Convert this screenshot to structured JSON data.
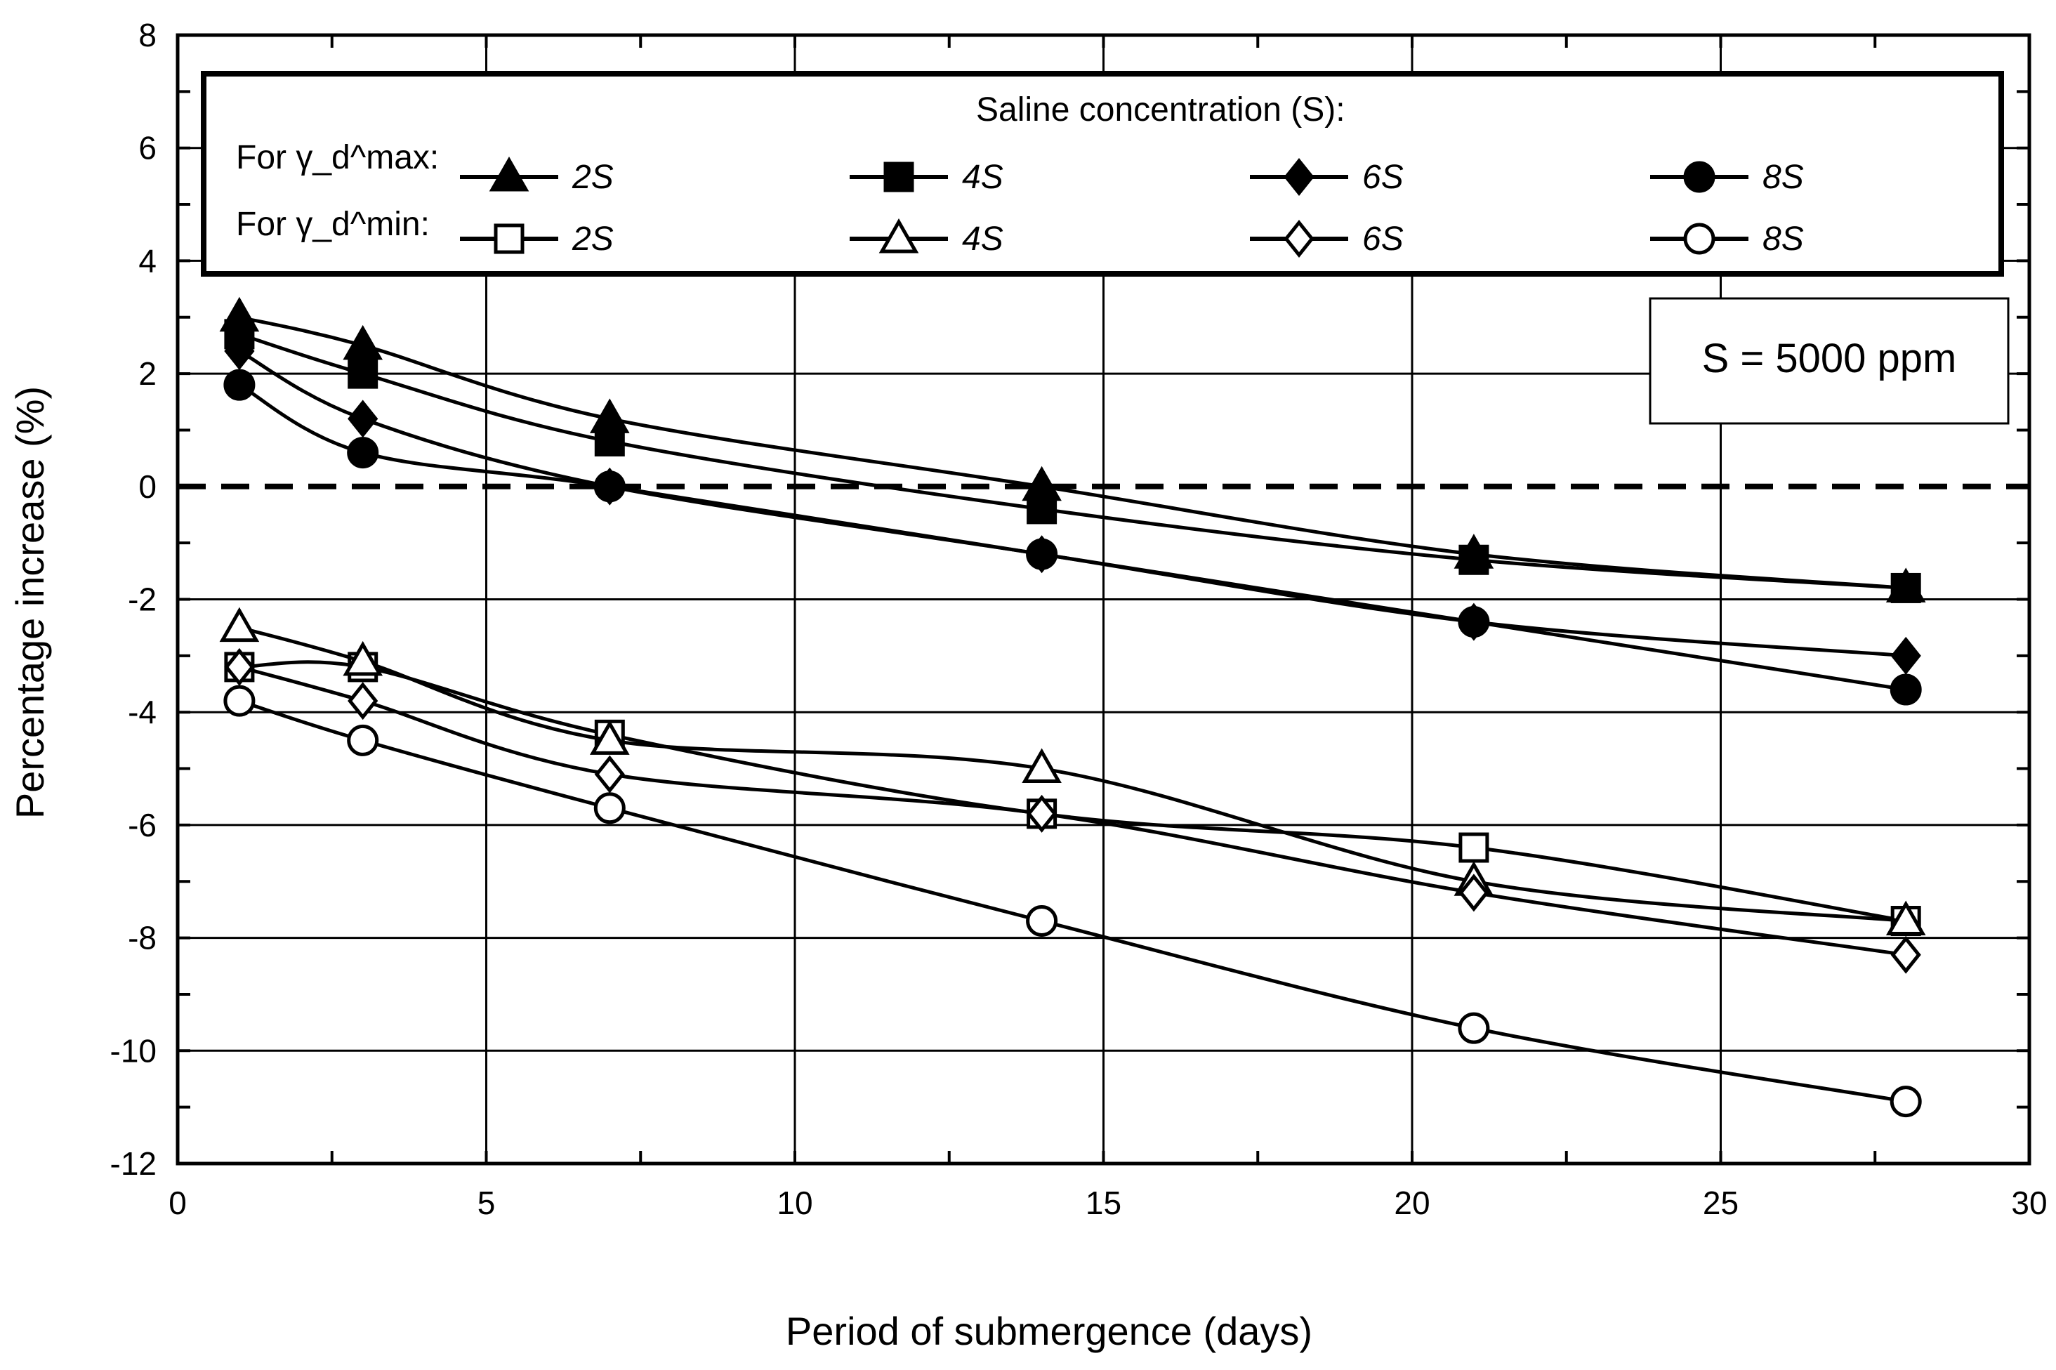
{
  "chart_data": {
    "type": "line",
    "title": "",
    "xlabel": "Period of submergence (days)",
    "ylabel": "Percentage increase (%)",
    "xlim": [
      0,
      30
    ],
    "ylim": [
      -12,
      8
    ],
    "x_ticks": [
      "0",
      "5",
      "10",
      "15",
      "20",
      "25",
      "30"
    ],
    "y_ticks": [
      "8",
      "6",
      "4",
      "2",
      "0",
      "-2",
      "-4",
      "-6",
      "-8",
      "-10",
      "-12"
    ],
    "grid": true,
    "reference_line": 0,
    "x": [
      1,
      3,
      7,
      14,
      21,
      28
    ],
    "legend_title": "Saline concentration (S):",
    "legend_row_max": "For γ_d^max:",
    "legend_row_min": "For γ_d^min:",
    "annotation": "S = 5000 ppm",
    "series": [
      {
        "name": "2S",
        "group": "γ_d max",
        "marker": "triangle",
        "filled": true,
        "values": [
          3.0,
          2.5,
          1.2,
          0.0,
          -1.2,
          -1.8
        ]
      },
      {
        "name": "4S",
        "group": "γ_d max",
        "marker": "square",
        "filled": true,
        "values": [
          2.7,
          2.0,
          0.8,
          -0.4,
          -1.3,
          -1.8
        ]
      },
      {
        "name": "6S",
        "group": "γ_d max",
        "marker": "diamond",
        "filled": true,
        "values": [
          2.4,
          1.2,
          0.0,
          -1.2,
          -2.4,
          -3.0
        ]
      },
      {
        "name": "8S",
        "group": "γ_d max",
        "marker": "circle",
        "filled": true,
        "values": [
          1.8,
          0.6,
          0.0,
          -1.2,
          -2.4,
          -3.6
        ]
      },
      {
        "name": "2S",
        "group": "γ_d min",
        "marker": "square",
        "filled": false,
        "values": [
          -3.2,
          -3.2,
          -4.4,
          -5.8,
          -6.4,
          -7.7
        ]
      },
      {
        "name": "4S",
        "group": "γ_d min",
        "marker": "triangle",
        "filled": false,
        "values": [
          -2.5,
          -3.1,
          -4.5,
          -5.0,
          -7.0,
          -7.7
        ]
      },
      {
        "name": "6S",
        "group": "γ_d min",
        "marker": "diamond",
        "filled": false,
        "values": [
          -3.2,
          -3.8,
          -5.1,
          -5.8,
          -7.2,
          -8.3
        ]
      },
      {
        "name": "8S",
        "group": "γ_d min",
        "marker": "circle",
        "filled": false,
        "values": [
          -3.8,
          -4.5,
          -5.7,
          -7.7,
          -9.6,
          -10.9
        ]
      }
    ]
  }
}
